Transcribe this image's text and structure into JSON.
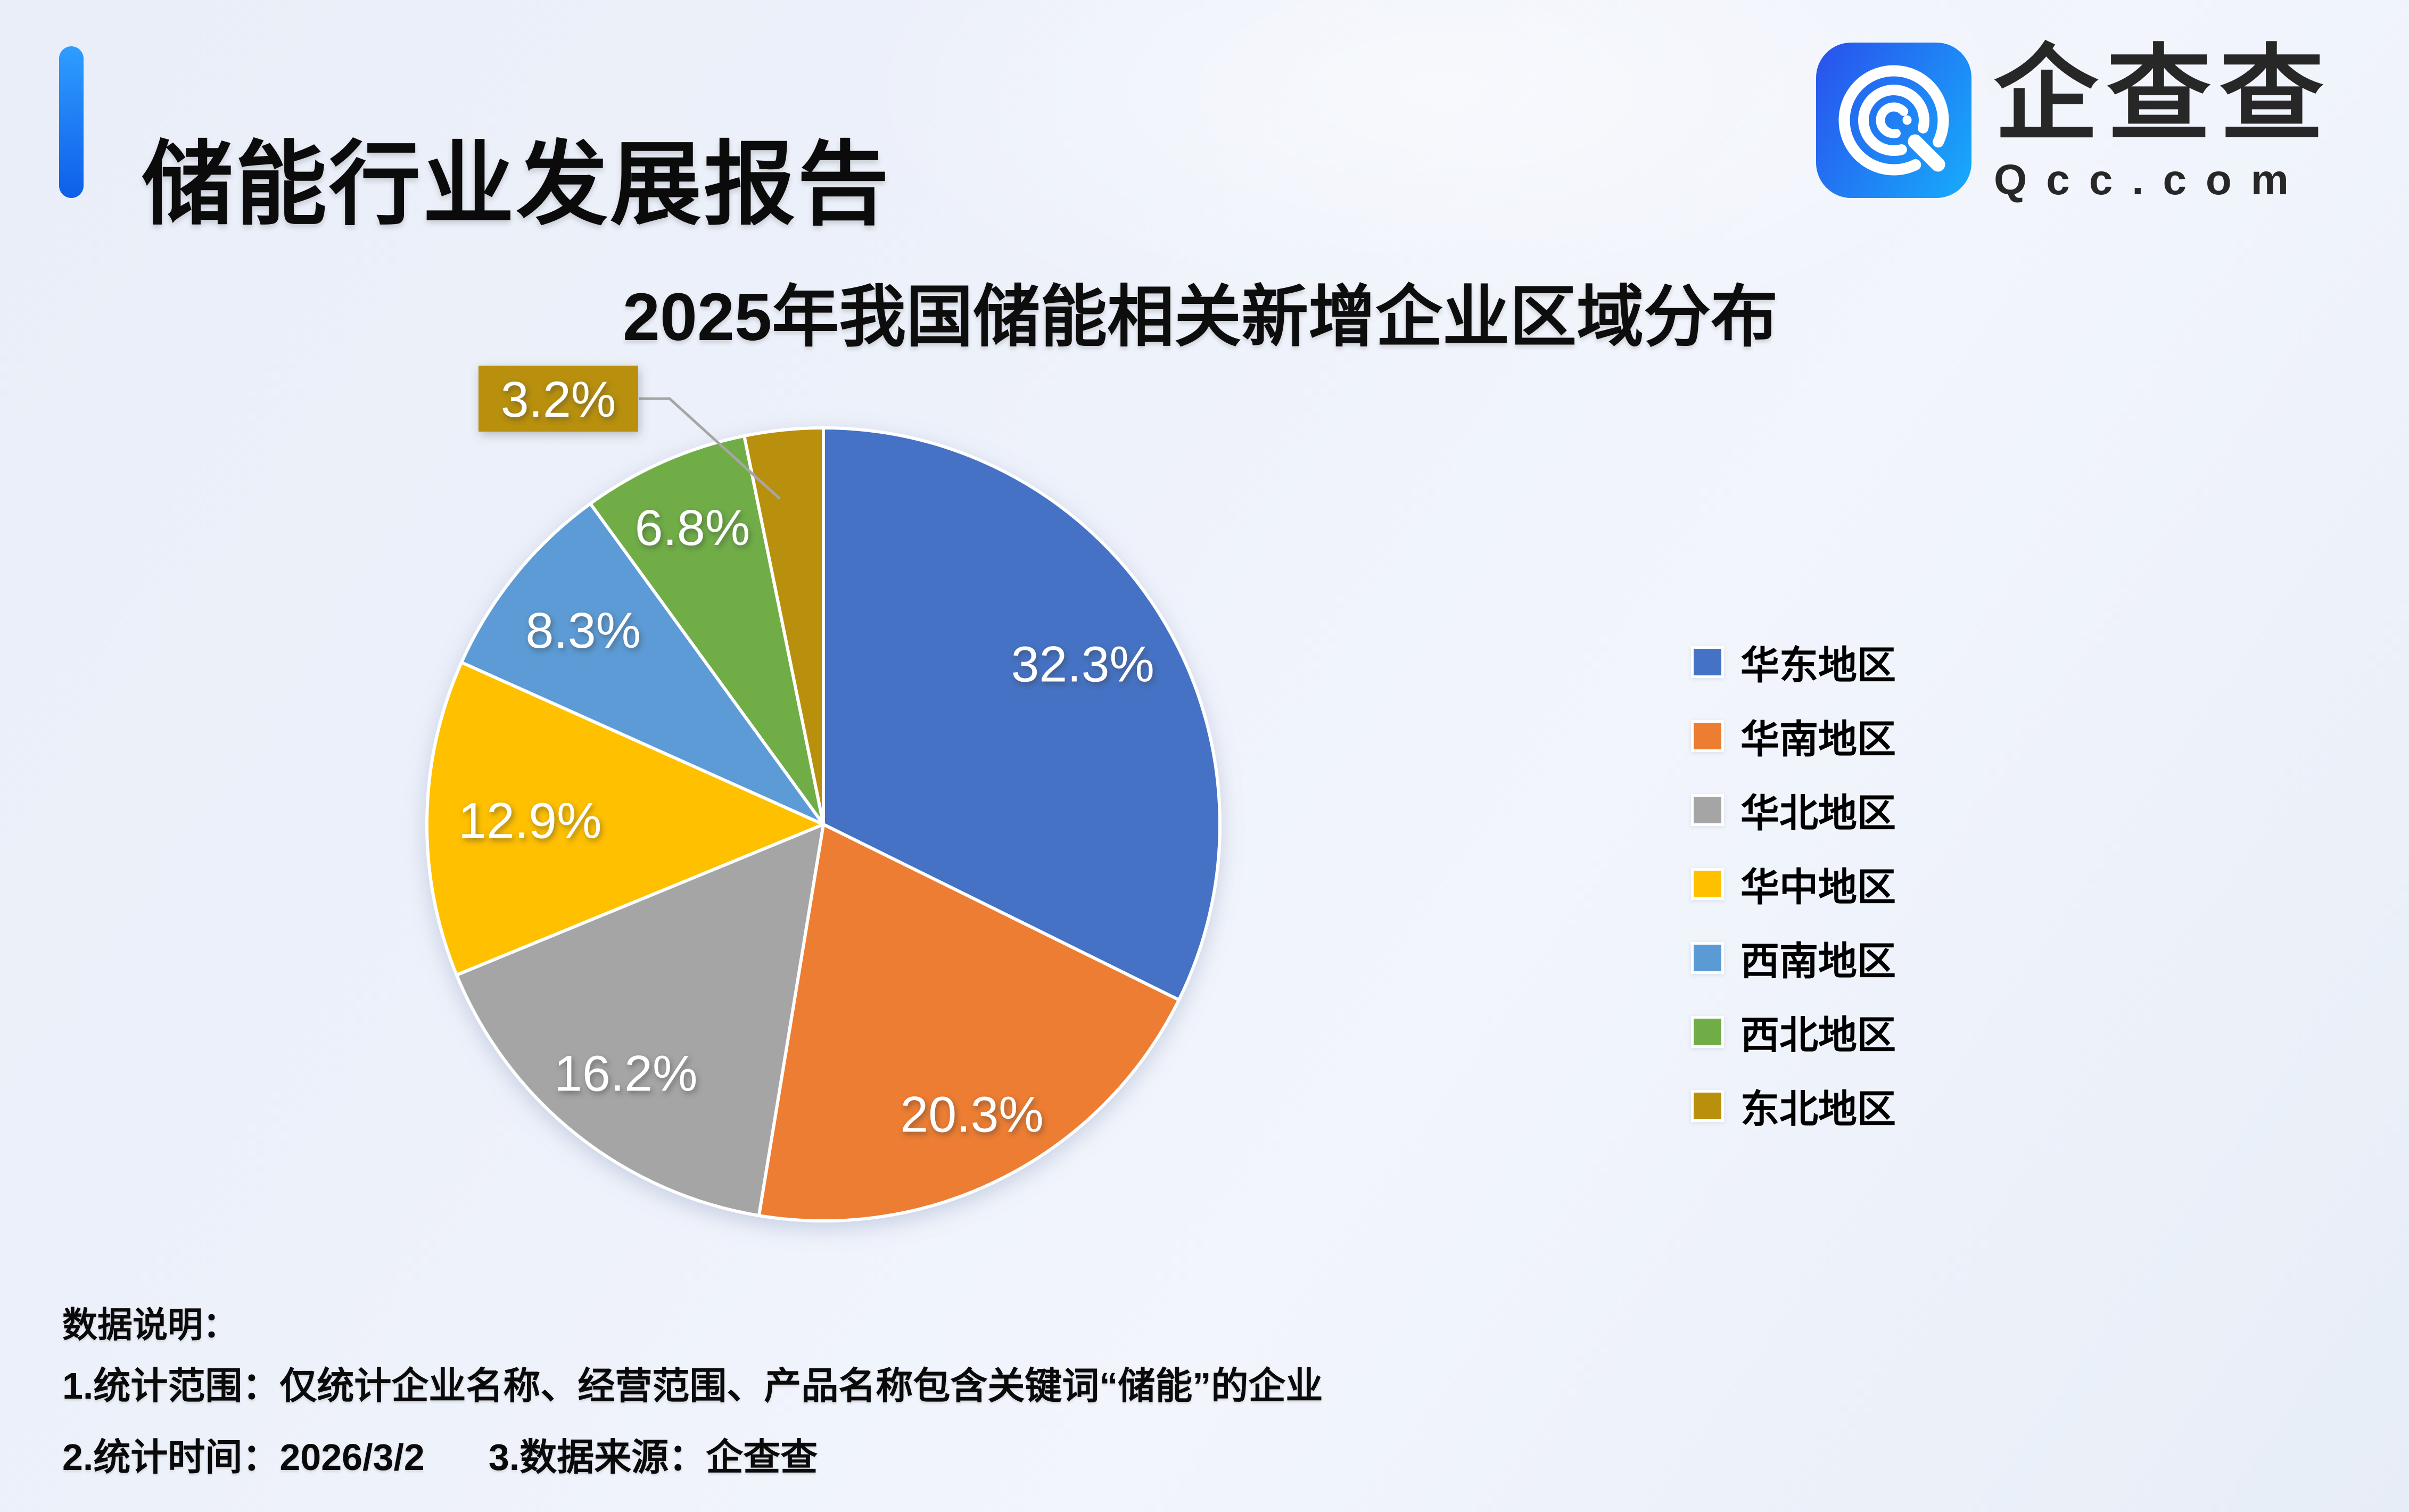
{
  "header": {
    "title": "储能行业发展报告",
    "logo": {
      "name": "企查查",
      "domain": "Qcc.com"
    }
  },
  "chart_data": {
    "type": "pie",
    "title": "2025年我国储能相关新增企业区域分布",
    "unit": "%",
    "start_angle_deg": 0,
    "direction": "clockwise",
    "legend_position": "right",
    "series": [
      {
        "label": "华东地区",
        "value": 32.3,
        "color": "#4472C4"
      },
      {
        "label": "华南地区",
        "value": 20.3,
        "color": "#ED7D31"
      },
      {
        "label": "华北地区",
        "value": 16.2,
        "color": "#A5A5A5"
      },
      {
        "label": "华中地区",
        "value": 12.9,
        "color": "#FFC000"
      },
      {
        "label": "西南地区",
        "value": 8.3,
        "color": "#5B9BD5"
      },
      {
        "label": "西北地区",
        "value": 6.8,
        "color": "#70AD47"
      },
      {
        "label": "东北地区",
        "value": 3.2,
        "color": "#B8900B"
      }
    ],
    "callout": {
      "slice": "东北地区",
      "label": "3.2%",
      "leader_color": "#A6A6A6"
    },
    "slice_label_color": "#FFFFFF",
    "slice_border_color": "#FFFFFF"
  },
  "notes": {
    "heading": "数据说明：",
    "line1": "1.统计范围：仅统计企业名称、经营范围、产品名称包含关键词“储能”的企业",
    "line2": "2.统计时间：2026/3/2",
    "line3": "3.数据来源：企查查"
  },
  "colors": {
    "accent_bar_top": "#2F9DFF",
    "accent_bar_bottom": "#0D5FE9",
    "logo_gradient_start": "#2857EE",
    "logo_gradient_end": "#18A6FA",
    "background": "#ECF1F9"
  }
}
